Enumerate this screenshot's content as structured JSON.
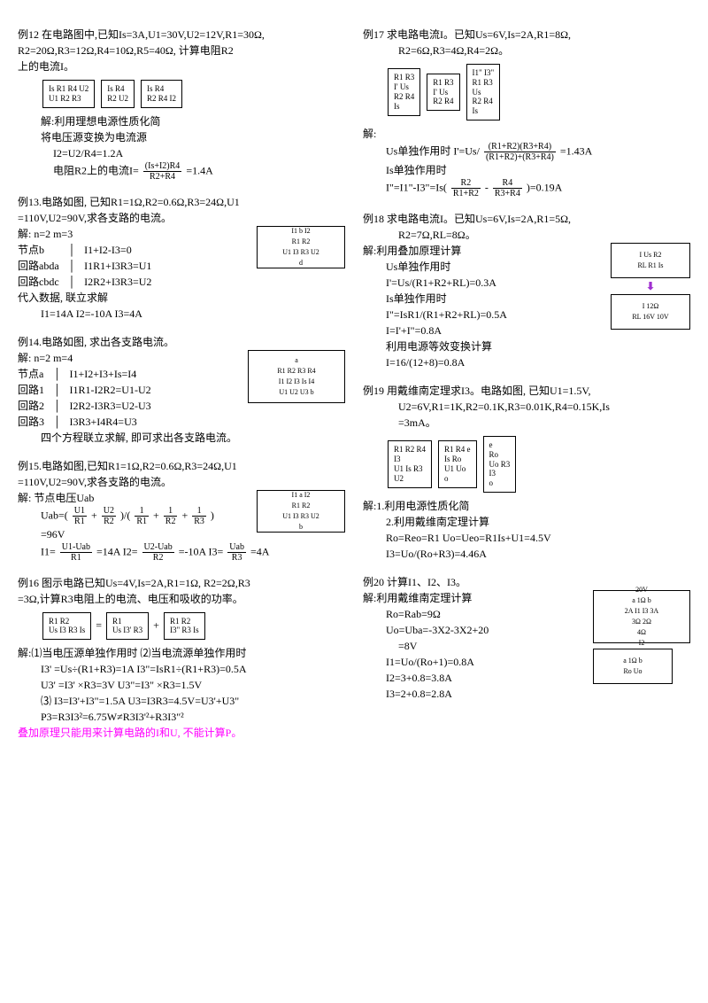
{
  "left": {
    "p12": {
      "title": "例12 在电路图中,已知Is=3A,U1=30V,U2=12V,R1=30Ω,",
      "title2": "R2=20Ω,R3=12Ω,R4=10Ω,R5=40Ω, 计算电阻R2",
      "title3": "上的电流I。",
      "fig1": "Is R1 R4 U2\nU1 R2 R3",
      "fig2": "Is R4\nR2 U2",
      "fig3": "Is R4\nR2 R4 I2",
      "sol1": "解:利用理想电源性质化简",
      "sol2": "将电压源变换为电流源",
      "eq1": "I2=U2/R4=1.2A",
      "eq2_pre": "电阻R2上的电流I=",
      "eq2_num": "(Is+I2)R4",
      "eq2_den": "R2+R4",
      "eq2_post": "=1.4A"
    },
    "p13": {
      "title": "例13.电路如图, 已知R1=1Ω,R2=0.6Ω,R3=24Ω,U1",
      "title2": "=110V,U2=90V,求各支路的电流。",
      "sol": "解: n=2  m=3",
      "row1a": "节点b",
      "row1b": "I1+I2-I3=0",
      "row2a": "回路abda",
      "row2b": "I1R1+I3R3=U1",
      "row3a": "回路cbdc",
      "row3b": "I2R2+I3R3=U2",
      "fig": "I1 b I2\nR1 R2\nU1 I3 R3 U2\nd",
      "sol2": "代入数据, 联立求解",
      "ans": "I1=14A  I2=-10A  I3=4A"
    },
    "p14": {
      "title": "例14.电路如图, 求出各支路电流。",
      "sol": "解: n=2  m=4",
      "row1a": "节点a",
      "row1b": "I1+I2+I3+Is=I4",
      "row2a": "回路1",
      "row2b": "I1R1-I2R2=U1-U2",
      "row3a": "回路2",
      "row3b": "I2R2-I3R3=U2-U3",
      "row4a": "回路3",
      "row4b": "I3R3+I4R4=U3",
      "fig": "a\nR1 R2 R3 R4\nI1 I2 I3 Is I4\nU1 U2 U3 b",
      "sol2": "四个方程联立求解, 即可求出各支路电流。"
    },
    "p15": {
      "title": "例15.电路如图,已知R1=1Ω,R2=0.6Ω,R3=24Ω,U1",
      "title2": "=110V,U2=90V,求各支路的电流。",
      "sol": "解: 节点电压Uab",
      "eq1_pre": "Uab=(",
      "eq1_f1n": "U1",
      "eq1_f1d": "R1",
      "eq1_mid1": " + ",
      "eq1_f2n": "U2",
      "eq1_f2d": "R2",
      "eq1_mid2": ")/(",
      "eq1_f3n": "1",
      "eq1_f3d": "R1",
      "eq1_mid3": "+",
      "eq1_f4n": "1",
      "eq1_f4d": "R2",
      "eq1_mid4": "+",
      "eq1_f5n": "1",
      "eq1_f5d": "R3",
      "eq1_post": ")",
      "eq2": "=96V",
      "fig": "I1 a I2\nR1 R2\nU1 I3 R3 U2\nb",
      "eq3_pre": "I1=",
      "eq3_f1n": "U1-Uab",
      "eq3_f1d": "R1",
      "eq3_r1": "=14A  I2=",
      "eq3_f2n": "U2-Uab",
      "eq3_f2d": "R2",
      "eq3_r2": "=-10A  I3=",
      "eq3_f3n": "Uab",
      "eq3_f3d": "R3",
      "eq3_r3": "=4A"
    },
    "p16": {
      "title": "例16 图示电路已知Us=4V,Is=2A,R1=1Ω, R2=2Ω,R3",
      "title2": "=3Ω,计算R3电阻上的电流、电压和吸收的功率。",
      "fig1": "R1 R2\nUs I3 R3 Is",
      "fig2": "R1\nUs I3' R3",
      "fig3": "R1 R2\nI3\" R3 Is",
      "sol1": "解:⑴当电压源单独作用时 ⑵当电流源单独作用时",
      "eq1": "I3' =Us÷(R1+R3)=1A    I3\"=IsR1÷(R1+R3)=0.5A",
      "eq2": "U3' =I3' ×R3=3V       U3\"=I3\" ×R3=1.5V",
      "eq3": "⑶ I3=I3'+I3\"=1.5A  U3=I3R3=4.5V=U3'+U3\"",
      "eq4": "P3=R3I3²=6.75W≠R3I3'²+R3I3\"²",
      "note": "叠加原理只能用来计算电路的I和U, 不能计算P。"
    }
  },
  "right": {
    "p17": {
      "title": "例17 求电路电流I。已知Us=6V,Is=2A,R1=8Ω,",
      "title2": "R2=6Ω,R3=4Ω,R4=2Ω。",
      "fig1": "R1 R3\nI' Us\nR2 R4\nIs",
      "fig2": "R1 R3\nI' Us\nR2 R4",
      "fig3": "I1\" I3\"\nR1 R3\nUs\nR2 R4\nIs",
      "sol": "解:",
      "eq1_pre": "Us单独作用时 I'=Us/",
      "eq1_fn": "(R1+R2)(R3+R4)",
      "eq1_fd": "(R1+R2)+(R3+R4)",
      "eq1_post": "=1.43A",
      "eq2": "Is单独作用时",
      "eq3_pre": "I\"=I1\"-I3\"=Is(",
      "eq3_f1n": "R2",
      "eq3_f1d": "R1+R2",
      "eq3_mid": " - ",
      "eq3_f2n": "R4",
      "eq3_f2d": "R3+R4",
      "eq3_post": ")=0.19A"
    },
    "p18": {
      "title": "例18 求电路电流I。已知Us=6V,Is=2A,R1=5Ω,",
      "title2": "R2=7Ω,RL=8Ω。",
      "sol": "解:利用叠加原理计算",
      "eq1": "Us单独作用时",
      "eq2": "I'=Us/(R1+R2+RL)=0.3A",
      "eq3": "Is单独作用时",
      "eq4": "I\"=IsR1/(R1+R2+RL)=0.5A",
      "eq5": "I=I'+I\"=0.8A",
      "eq6": "利用电源等效变换计算",
      "eq7": "I=16/(12+8)=0.8A",
      "fig1": "I Us R2\nRL R1 Is",
      "fig2": "I 12Ω\nRL 16V 10V",
      "arrow": "⬇"
    },
    "p19": {
      "title": "例19 用戴维南定理求I3。电路如图, 已知U1=1.5V,",
      "title2": "U2=6V,R1=1K,R2=0.1K,R3=0.01K,R4=0.15K,Is",
      "title3": "=3mA。",
      "fig1": "R1 R2 R4\nI3\nU1 Is R3\nU2",
      "fig2": "R1 R4 e\nIs Ro\nU1 Uo\no",
      "fig3": "e\nRo\nUo R3\nI3\no",
      "sol1": "解:1.利用电源性质化简",
      "sol2": "2.利用戴维南定理计算",
      "eq1": "Ro=Reo=R1  Uo=Ueo=R1Is+U1=4.5V",
      "eq2": "I3=Uo/(Ro+R3)=4.46A"
    },
    "p20": {
      "title": "例20 计算I1、I2、I3。",
      "sol": "解:利用戴维南定理计算",
      "eq1": "Ro=Rab=9Ω",
      "eq2": "Uo=Uba=-3X2-3X2+20",
      "eq3": "=8V",
      "eq4": "I1=Uo/(Ro+1)=0.8A",
      "eq5": "I2=3+0.8=3.8A",
      "eq6": "I3=2+0.8=2.8A",
      "fig1": "20V\na 1Ω b\n2A I1 I3 3A\n3Ω 2Ω\n4Ω\nI2",
      "fig2": "a 1Ω b\nRo Uo"
    }
  }
}
